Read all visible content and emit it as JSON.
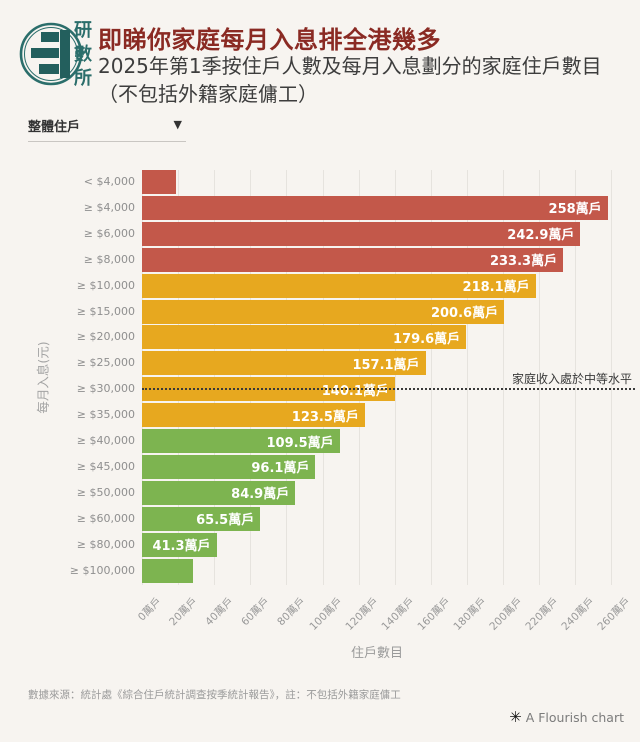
{
  "header": {
    "logo_text": "研數所",
    "title": "即睇你家庭每月入息排全港幾多",
    "subtitle": "2025年第1季按住戶人數及每月入息劃分的家庭住戶數目（不包括外籍家庭傭工）"
  },
  "controls": {
    "filter_selected": "整體住戶",
    "caret_icon": "▼"
  },
  "chart_data": {
    "type": "bar",
    "orientation": "horizontal",
    "xlabel": "住戶數目",
    "ylabel": "每月入息(元)",
    "unit": "萬戶",
    "xlim": [
      0,
      260
    ],
    "grid": true,
    "x_ticks": [
      "0萬戶",
      "20萬戶",
      "40萬戶",
      "60萬戶",
      "80萬戶",
      "100萬戶",
      "120萬戶",
      "140萬戶",
      "160萬戶",
      "180萬戶",
      "200萬戶",
      "220萬戶",
      "240萬戶",
      "260萬戶"
    ],
    "bars": [
      {
        "category": "< $4,000",
        "value": 19,
        "label": "",
        "color": "red"
      },
      {
        "category": "≥ $4,000",
        "value": 258,
        "label": "258萬戶",
        "color": "red"
      },
      {
        "category": "≥ $6,000",
        "value": 242.9,
        "label": "242.9萬戶",
        "color": "red"
      },
      {
        "category": "≥ $8,000",
        "value": 233.3,
        "label": "233.3萬戶",
        "color": "red"
      },
      {
        "category": "≥ $10,000",
        "value": 218.1,
        "label": "218.1萬戶",
        "color": "yellow"
      },
      {
        "category": "≥ $15,000",
        "value": 200.6,
        "label": "200.6萬戶",
        "color": "yellow"
      },
      {
        "category": "≥ $20,000",
        "value": 179.6,
        "label": "179.6萬戶",
        "color": "yellow"
      },
      {
        "category": "≥ $25,000",
        "value": 157.1,
        "label": "157.1萬戶",
        "color": "yellow"
      },
      {
        "category": "≥ $30,000",
        "value": 140.1,
        "label": "140.1萬戶",
        "color": "yellow"
      },
      {
        "category": "≥ $35,000",
        "value": 123.5,
        "label": "123.5萬戶",
        "color": "yellow"
      },
      {
        "category": "≥ $40,000",
        "value": 109.5,
        "label": "109.5萬戶",
        "color": "green"
      },
      {
        "category": "≥ $45,000",
        "value": 96.1,
        "label": "96.1萬戶",
        "color": "green"
      },
      {
        "category": "≥ $50,000",
        "value": 84.9,
        "label": "84.9萬戶",
        "color": "green"
      },
      {
        "category": "≥ $60,000",
        "value": 65.5,
        "label": "65.5萬戶",
        "color": "green"
      },
      {
        "category": "≥ $80,000",
        "value": 41.3,
        "label": "41.3萬戶",
        "color": "green"
      },
      {
        "category": "≥ $100,000",
        "value": 28,
        "label": "",
        "color": "green"
      }
    ],
    "annotation": {
      "text": "家庭收入處於中等水平",
      "at_category": "≥ $30,000"
    },
    "legend_position": "none"
  },
  "colors": {
    "red": "#c3584a",
    "yellow": "#e7a81f",
    "green": "#7db450",
    "title": "#8a2a23",
    "logo": "#2b6e6b",
    "background": "#f7f4f0"
  },
  "footer": {
    "source": "數據來源：統計處《綜合住戶統計調查按季統計報告》，註：不包括外籍家庭傭工",
    "flourish_icon": "✳",
    "flourish_text": "A Flourish chart"
  }
}
